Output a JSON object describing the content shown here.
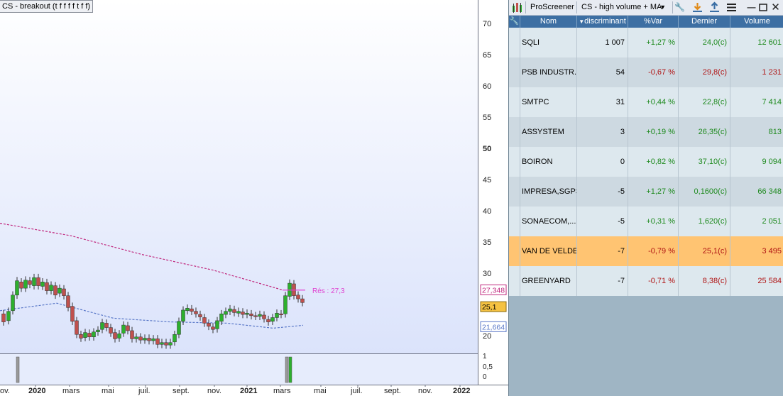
{
  "chart": {
    "title": "CS - breakout (t f f f f t f f)",
    "resistance_label": "Rés : 27,3",
    "price_labels": {
      "ma_high": "27,348",
      "last": "25,1",
      "ma_low": "21,664"
    },
    "y_ticks": [
      "70",
      "65",
      "60",
      "55",
      "50",
      "45",
      "40",
      "35",
      "30",
      "25",
      "20"
    ],
    "indicator_ticks": [
      "1",
      "0,5",
      "0"
    ],
    "x_ticks": [
      "ov.",
      "2020",
      "mars",
      "mai",
      "juil.",
      "sept.",
      "nov.",
      "2021",
      "mars",
      "mai",
      "juil.",
      "sept.",
      "nov.",
      "2022"
    ],
    "colors": {
      "up": "#2db02d",
      "down": "#c0504d",
      "ma_high": "#c0287e",
      "ma_low": "#5a78c8",
      "resistance": "#e040d0",
      "last_bg": "#f5c242"
    }
  },
  "chart_data": {
    "type": "candlestick",
    "title": "CS - breakout (t f f f f t f f)",
    "y_range": [
      15,
      73
    ],
    "resistance": 27.3,
    "last": 25.1,
    "moving_averages": [
      {
        "value_at_end": 27.348,
        "points": [
          [
            0,
            38
          ],
          [
            100,
            36
          ],
          [
            200,
            33
          ],
          [
            300,
            30.5
          ],
          [
            397,
            27.35
          ]
        ]
      },
      {
        "value_at_end": 21.664,
        "points": [
          [
            0,
            24
          ],
          [
            80,
            25.2
          ],
          [
            160,
            22.8
          ],
          [
            240,
            22.2
          ],
          [
            320,
            22
          ],
          [
            385,
            21.2
          ],
          [
            427,
            21.66
          ]
        ]
      }
    ],
    "candles": [
      [
        5,
        23.5,
        22.2
      ],
      [
        12,
        22.4,
        23.9
      ],
      [
        18,
        24,
        26.5
      ],
      [
        24,
        26.5,
        28.8
      ],
      [
        30,
        28.6,
        27.6
      ],
      [
        36,
        27.6,
        28.9
      ],
      [
        42,
        28.8,
        28.2
      ],
      [
        48,
        28,
        29.3
      ],
      [
        54,
        29.3,
        28
      ],
      [
        60,
        27.9,
        28.6
      ],
      [
        66,
        28.5,
        27.2
      ],
      [
        72,
        27.2,
        28.1
      ],
      [
        78,
        28,
        26.5
      ],
      [
        84,
        26.8,
        27.6
      ],
      [
        90,
        27.5,
        26.4
      ],
      [
        96,
        26.4,
        24.5
      ],
      [
        102,
        24.7,
        22.3
      ],
      [
        108,
        22.4,
        20.2
      ],
      [
        114,
        20.2,
        19.6
      ],
      [
        120,
        19.7,
        20.5
      ],
      [
        126,
        20.4,
        19.8
      ],
      [
        132,
        19.8,
        20.6
      ],
      [
        138,
        20.6,
        20.9
      ],
      [
        144,
        21,
        22.1
      ],
      [
        150,
        22,
        21.3
      ],
      [
        156,
        21.3,
        20.4
      ],
      [
        162,
        20.5,
        19.5
      ],
      [
        168,
        19.6,
        20.3
      ],
      [
        174,
        20.4,
        21.7
      ],
      [
        180,
        21.6,
        20.8
      ],
      [
        186,
        20.8,
        19.5
      ],
      [
        192,
        19.5,
        19.8
      ],
      [
        198,
        19.8,
        19.3
      ],
      [
        204,
        19.3,
        19.6
      ],
      [
        210,
        19.6,
        19.2
      ],
      [
        216,
        19.2,
        19.5
      ],
      [
        222,
        19.5,
        18.6
      ],
      [
        228,
        18.6,
        18.9
      ],
      [
        234,
        18.9,
        18.5
      ],
      [
        240,
        18.5,
        18.9
      ],
      [
        246,
        19,
        20.2
      ],
      [
        252,
        20.2,
        22.3
      ],
      [
        258,
        22.3,
        24.1
      ],
      [
        264,
        24,
        24.4
      ],
      [
        270,
        24.3,
        23.9
      ],
      [
        276,
        23.9,
        23.5
      ],
      [
        282,
        23.4,
        23
      ],
      [
        288,
        22.9,
        22
      ],
      [
        294,
        22,
        21.5
      ],
      [
        300,
        21.4,
        21
      ],
      [
        306,
        21.1,
        22.4
      ],
      [
        312,
        22.3,
        23.5
      ],
      [
        318,
        23.4,
        23.9
      ],
      [
        324,
        23.9,
        24.3
      ],
      [
        330,
        24.2,
        23.7
      ],
      [
        336,
        23.6,
        23.9
      ],
      [
        342,
        23.8,
        23.4
      ],
      [
        348,
        23.4,
        23.6
      ],
      [
        354,
        23.5,
        23.2
      ],
      [
        360,
        23.2,
        23.1
      ],
      [
        366,
        23.1,
        23.4
      ],
      [
        372,
        23.3,
        22.7
      ],
      [
        378,
        22.6,
        22.2
      ],
      [
        384,
        22.3,
        22.9
      ],
      [
        390,
        22.9,
        23.6
      ],
      [
        396,
        23.5,
        23.4
      ],
      [
        402,
        23.5,
        26.4
      ],
      [
        408,
        26.3,
        28.4
      ],
      [
        414,
        28.3,
        26.4
      ],
      [
        420,
        26.5,
        25.9
      ],
      [
        426,
        25.9,
        25.3
      ]
    ],
    "indicator_bars": [
      25,
      404,
      409
    ]
  },
  "screener": {
    "logo": "chart-bars-icon",
    "title": "ProScreener",
    "screen_name": "CS - high volume + MA",
    "columns": [
      "Nom",
      "discriminant",
      "%Var",
      "Dernier",
      "Volume"
    ],
    "rows": [
      {
        "name": "SQLI",
        "disc": "1 007",
        "var": "+1,27 %",
        "last": "24,0(c)",
        "vol": "12 601",
        "dir": "pos"
      },
      {
        "name": "PSB INDUSTR...",
        "disc": "54",
        "var": "-0,67 %",
        "last": "29,8(c)",
        "vol": "1 231",
        "dir": "neg"
      },
      {
        "name": "SMTPC",
        "disc": "31",
        "var": "+0,44 %",
        "last": "22,8(c)",
        "vol": "7 414",
        "dir": "pos"
      },
      {
        "name": "ASSYSTEM",
        "disc": "3",
        "var": "+0,19 %",
        "last": "26,35(c)",
        "vol": "813",
        "dir": "pos"
      },
      {
        "name": "BOIRON",
        "disc": "0",
        "var": "+0,82 %",
        "last": "37,10(c)",
        "vol": "9 094",
        "dir": "pos"
      },
      {
        "name": "IMPRESA,SGPS",
        "disc": "-5",
        "var": "+1,27 %",
        "last": "0,1600(c)",
        "vol": "66 348",
        "dir": "pos"
      },
      {
        "name": "SONAECOM,...",
        "disc": "-5",
        "var": "+0,31 %",
        "last": "1,620(c)",
        "vol": "2 051",
        "dir": "pos"
      },
      {
        "name": "VAN DE VELDE",
        "disc": "-7",
        "var": "-0,79 %",
        "last": "25,1(c)",
        "vol": "3 495",
        "dir": "neg",
        "selected": true
      },
      {
        "name": "GREENYARD",
        "disc": "-7",
        "var": "-0,71 %",
        "last": "8,38(c)",
        "vol": "25 584",
        "dir": "neg"
      }
    ],
    "row_colors": {
      "odd": "#dde8ee",
      "even": "#cdd9e1",
      "selected": "#ffc472"
    }
  }
}
